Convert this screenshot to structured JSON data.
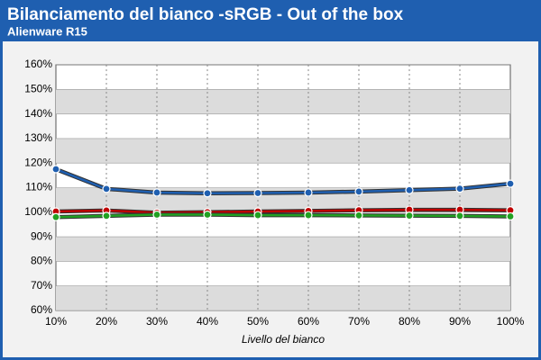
{
  "chart_data": {
    "type": "line",
    "title": "Bilanciamento del bianco -sRGB - Out of the box",
    "subtitle": "Alienware R15",
    "x_label": "Livello del bianco",
    "categories": [
      "10%",
      "20%",
      "30%",
      "40%",
      "50%",
      "60%",
      "70%",
      "80%",
      "90%",
      "100%"
    ],
    "series": [
      {
        "color": "#1f5fb0",
        "values": [
          117.5,
          109.5,
          108,
          107.7,
          107.8,
          108,
          108.4,
          109,
          109.6,
          111.6
        ]
      },
      {
        "color": "#c00000",
        "values": [
          100.3,
          100.7,
          99.8,
          100,
          100.3,
          100.5,
          100.8,
          101,
          101,
          100.8
        ]
      },
      {
        "color": "#22a022",
        "values": [
          98,
          98.5,
          99,
          99,
          98.8,
          98.8,
          98.7,
          98.6,
          98.5,
          98.3
        ]
      }
    ],
    "ylim": [
      60,
      160
    ],
    "yticks": [
      {
        "value": 60,
        "label": "60%"
      },
      {
        "value": 70,
        "label": "70%"
      },
      {
        "value": 80,
        "label": "80%"
      },
      {
        "value": 90,
        "label": "90%"
      },
      {
        "value": 100,
        "label": "100%"
      },
      {
        "value": 110,
        "label": "110%"
      },
      {
        "value": 120,
        "label": "120%"
      },
      {
        "value": 130,
        "label": "130%"
      },
      {
        "value": 140,
        "label": "140%"
      },
      {
        "value": 150,
        "label": "150%"
      },
      {
        "value": 160,
        "label": "160%"
      }
    ],
    "grid": true
  }
}
